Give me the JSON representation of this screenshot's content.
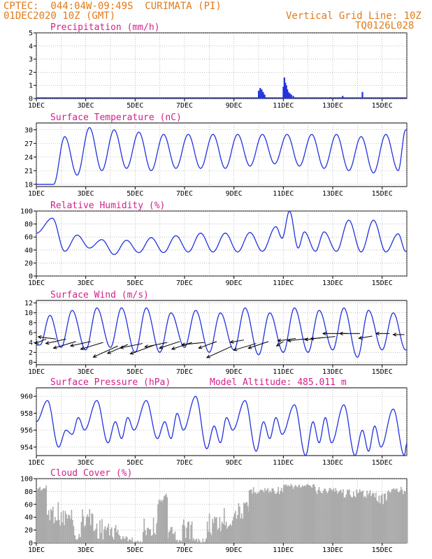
{
  "header": {
    "left_line1": "CPTEC:  044:04W-09:49S  CURIMATA (PI)",
    "left_line2": "01DEC2020 10Z (GMT)",
    "right_line1": "Vertical Grid Line: 10Z",
    "right_line2": "TQ0126L028"
  },
  "colors": {
    "header": "#e07a1a",
    "title": "#d41f8c",
    "line": "#2233dd",
    "cloud": "#aaaaaa"
  },
  "x_axis": {
    "day_range": [
      1,
      16
    ],
    "tick_days": [
      1,
      3,
      5,
      7,
      9,
      11,
      13,
      15
    ],
    "tick_labels": [
      "1DEC",
      "3DEC",
      "5DEC",
      "7DEC",
      "9DEC",
      "11DEC",
      "13DEC",
      "15DEC"
    ]
  },
  "model_altitude_label": "Model Altitude: 485.011 m",
  "chart_data": [
    {
      "type": "bar",
      "title": "Precipitation (mm/h)",
      "ylim": [
        0,
        5
      ],
      "yticks": [
        0,
        1,
        2,
        3,
        4,
        5
      ],
      "x": [
        10.0,
        10.06,
        10.12,
        10.18,
        10.24,
        11.0,
        11.04,
        11.08,
        11.12,
        11.16,
        11.2,
        11.26,
        11.32,
        11.4,
        12.9,
        13.4,
        14.2
      ],
      "values": [
        0.6,
        0.8,
        0.7,
        0.5,
        0.3,
        0.9,
        1.6,
        1.2,
        1.0,
        0.7,
        0.5,
        0.4,
        0.3,
        0.2,
        0.1,
        0.2,
        0.5
      ]
    },
    {
      "type": "line",
      "title": "Surface Temperature (nC)",
      "ylim": [
        17.5,
        31.5
      ],
      "yticks": [
        18,
        21,
        24,
        27,
        30
      ],
      "min_times": [
        1.7,
        2.65,
        3.65,
        4.65,
        5.65,
        6.65,
        7.65,
        8.65,
        9.65,
        10.65,
        11.65,
        12.65,
        13.65,
        14.65,
        15.65
      ],
      "min_values": [
        18.0,
        20.0,
        21.0,
        21.5,
        21.0,
        21.5,
        21.5,
        21.5,
        22.0,
        22.5,
        22.0,
        21.5,
        21.0,
        20.5,
        21.0
      ],
      "max_times": [
        2.15,
        3.15,
        4.15,
        5.15,
        6.15,
        7.15,
        8.15,
        9.15,
        10.15,
        11.15,
        12.15,
        13.15,
        14.15,
        15.15,
        15.95
      ],
      "max_values": [
        28.5,
        30.5,
        30.0,
        29.5,
        29.0,
        29.0,
        29.0,
        29.0,
        29.0,
        29.0,
        29.0,
        29.0,
        28.5,
        29.0,
        30.0
      ]
    },
    {
      "type": "line",
      "title": "Relative Humidity (%)",
      "ylim": [
        0,
        100
      ],
      "yticks": [
        0,
        20,
        40,
        60,
        80,
        100
      ],
      "max_times": [
        1.65,
        2.65,
        3.65,
        4.65,
        5.65,
        6.65,
        7.65,
        8.65,
        9.65,
        10.7,
        11.25,
        11.85,
        12.65,
        13.65,
        14.65,
        15.65
      ],
      "max_values": [
        89,
        63,
        56,
        55,
        59,
        62,
        66,
        66,
        67,
        76,
        100,
        68,
        68,
        86,
        86,
        65
      ],
      "min_times": [
        1.0,
        2.15,
        3.15,
        4.15,
        5.15,
        6.15,
        7.15,
        8.15,
        9.15,
        10.15,
        10.95,
        11.6,
        12.3,
        13.15,
        14.15,
        15.15,
        15.95
      ],
      "min_values": [
        66,
        38,
        43,
        33,
        36,
        36,
        37,
        37,
        37,
        38,
        58,
        43,
        38,
        38,
        37,
        37,
        38
      ]
    },
    {
      "type": "line",
      "title": "Surface Wind (m/s)",
      "ylim": [
        -0.5,
        12.5
      ],
      "yticks": [
        0,
        2,
        4,
        6,
        8,
        10,
        12
      ],
      "max_times": [
        1.55,
        2.45,
        3.45,
        4.45,
        5.45,
        6.45,
        7.45,
        8.45,
        9.45,
        10.45,
        11.45,
        12.45,
        13.45,
        14.45,
        15.45
      ],
      "max_values": [
        9.5,
        10.5,
        11.0,
        11.0,
        11.0,
        10.0,
        10.5,
        10.0,
        11.0,
        10.0,
        11.0,
        10.5,
        11.0,
        10.5,
        10.0
      ],
      "min_times": [
        1.15,
        2.0,
        3.0,
        4.0,
        5.0,
        6.0,
        7.0,
        8.0,
        9.0,
        10.0,
        11.0,
        12.0,
        13.0,
        14.0,
        15.0,
        15.95
      ],
      "min_values": [
        3.5,
        3.0,
        2.5,
        3.0,
        2.0,
        2.0,
        3.0,
        2.0,
        2.5,
        1.5,
        2.0,
        2.0,
        2.5,
        1.0,
        2.5,
        2.5
      ],
      "vectors": [
        {
          "day": 1.4,
          "y": 4.7,
          "u": 5,
          "v": 2
        },
        {
          "day": 1.8,
          "y": 4.7,
          "u": 8,
          "v": -1
        },
        {
          "day": 2.2,
          "y": 4.7,
          "u": 9,
          "v": 2
        },
        {
          "day": 2.6,
          "y": 4.2,
          "u": 10,
          "v": 3
        },
        {
          "day": 3.2,
          "y": 4.2,
          "u": 9,
          "v": 2
        },
        {
          "day": 3.7,
          "y": 4.0,
          "u": 10,
          "v": 3
        },
        {
          "day": 4.3,
          "y": 3.3,
          "u": 11,
          "v": 5
        },
        {
          "day": 4.7,
          "y": 3.6,
          "u": 9,
          "v": 4
        },
        {
          "day": 5.3,
          "y": 3.8,
          "u": 10,
          "v": 2
        },
        {
          "day": 5.8,
          "y": 3.5,
          "u": 11,
          "v": 4
        },
        {
          "day": 6.3,
          "y": 4.0,
          "u": 10,
          "v": 2
        },
        {
          "day": 6.8,
          "y": 4.2,
          "u": 9,
          "v": 3
        },
        {
          "day": 7.3,
          "y": 4.0,
          "u": 9,
          "v": 3
        },
        {
          "day": 7.8,
          "y": 4.0,
          "u": 10,
          "v": 1
        },
        {
          "day": 8.3,
          "y": 4.2,
          "u": 8,
          "v": 3
        },
        {
          "day": 8.9,
          "y": 3.2,
          "u": 11,
          "v": 5
        },
        {
          "day": 9.4,
          "y": 4.5,
          "u": 6,
          "v": 1
        },
        {
          "day": 9.9,
          "y": 3.8,
          "u": 10,
          "v": 3
        },
        {
          "day": 10.4,
          "y": 4.2,
          "u": 9,
          "v": 3
        },
        {
          "day": 11.0,
          "y": 4.2,
          "u": 3,
          "v": 2
        },
        {
          "day": 11.5,
          "y": 4.8,
          "u": 8,
          "v": 1
        },
        {
          "day": 12.0,
          "y": 4.8,
          "u": 9,
          "v": 1
        },
        {
          "day": 12.6,
          "y": 5.0,
          "u": 8,
          "v": 1
        },
        {
          "day": 13.1,
          "y": 5.2,
          "u": 11,
          "v": 1
        },
        {
          "day": 13.6,
          "y": 5.8,
          "u": 11,
          "v": 0
        },
        {
          "day": 14.1,
          "y": 5.8,
          "u": 9,
          "v": 0
        },
        {
          "day": 14.6,
          "y": 5.3,
          "u": 6,
          "v": 1
        },
        {
          "day": 15.3,
          "y": 5.8,
          "u": 6,
          "v": 0
        },
        {
          "day": 15.9,
          "y": 5.6,
          "u": 5,
          "v": 0
        }
      ]
    },
    {
      "type": "line",
      "title": "Surface Pressure (hPa)",
      "ylim": [
        953.0,
        961.0
      ],
      "yticks": [
        954,
        956,
        958,
        960
      ],
      "extreme_times": [
        1.0,
        1.45,
        1.9,
        2.2,
        2.45,
        2.7,
        2.95,
        3.45,
        3.9,
        4.2,
        4.45,
        4.7,
        4.95,
        5.45,
        5.9,
        6.2,
        6.45,
        6.7,
        6.95,
        7.45,
        7.9,
        8.2,
        8.45,
        8.7,
        8.95,
        9.45,
        9.9,
        10.2,
        10.45,
        10.7,
        10.95,
        11.45,
        11.9,
        12.2,
        12.45,
        12.7,
        12.95,
        13.45,
        13.9,
        14.2,
        14.45,
        14.7,
        14.95,
        15.45,
        15.9,
        16.0
      ],
      "extreme_values": [
        957.0,
        959.5,
        954.0,
        956.0,
        955.5,
        957.5,
        956.0,
        959.5,
        954.5,
        957.0,
        955.0,
        957.5,
        956.0,
        959.5,
        955.0,
        957.0,
        955.0,
        958.0,
        956.0,
        960.0,
        953.8,
        956.5,
        954.5,
        957.5,
        956.0,
        959.5,
        953.5,
        957.0,
        955.0,
        957.5,
        955.5,
        959.0,
        953.0,
        957.0,
        954.5,
        957.5,
        954.5,
        959.0,
        953.0,
        956.0,
        953.5,
        956.5,
        954.0,
        958.5,
        953.0,
        954.5
      ]
    },
    {
      "type": "bar",
      "title": "Cloud Cover (%)",
      "ylim": [
        0,
        100
      ],
      "yticks": [
        0,
        20,
        40,
        60,
        80,
        100
      ],
      "segments": [
        {
          "t": [
            1.0,
            1.4
          ],
          "level": 90,
          "jitter": 10
        },
        {
          "t": [
            1.4,
            1.9
          ],
          "level": 65,
          "jitter": 35
        },
        {
          "t": [
            1.9,
            2.5
          ],
          "level": 55,
          "jitter": 30
        },
        {
          "t": [
            2.5,
            2.8
          ],
          "level": 15,
          "jitter": 12
        },
        {
          "t": [
            2.8,
            3.3
          ],
          "level": 55,
          "jitter": 30
        },
        {
          "t": [
            3.3,
            3.9
          ],
          "level": 40,
          "jitter": 35
        },
        {
          "t": [
            3.9,
            4.4
          ],
          "level": 30,
          "jitter": 25
        },
        {
          "t": [
            4.4,
            4.9
          ],
          "level": 12,
          "jitter": 10
        },
        {
          "t": [
            4.9,
            5.3
          ],
          "level": 4,
          "jitter": 4
        },
        {
          "t": [
            5.3,
            5.9
          ],
          "level": 40,
          "jitter": 30
        },
        {
          "t": [
            5.9,
            6.3
          ],
          "level": 78,
          "jitter": 18
        },
        {
          "t": [
            6.3,
            6.6
          ],
          "level": 25,
          "jitter": 20
        },
        {
          "t": [
            6.6,
            6.9
          ],
          "level": 5,
          "jitter": 5
        },
        {
          "t": [
            6.9,
            7.3
          ],
          "level": 40,
          "jitter": 35
        },
        {
          "t": [
            7.3,
            7.9
          ],
          "level": 8,
          "jitter": 8
        },
        {
          "t": [
            7.9,
            8.5
          ],
          "level": 50,
          "jitter": 40
        },
        {
          "t": [
            8.5,
            9.0
          ],
          "level": 55,
          "jitter": 35
        },
        {
          "t": [
            9.0,
            9.6
          ],
          "level": 65,
          "jitter": 30
        },
        {
          "t": [
            9.6,
            11.0
          ],
          "level": 88,
          "jitter": 12
        },
        {
          "t": [
            11.0,
            12.3
          ],
          "level": 92,
          "jitter": 8
        },
        {
          "t": [
            12.3,
            13.4
          ],
          "level": 88,
          "jitter": 12
        },
        {
          "t": [
            13.4,
            14.6
          ],
          "level": 85,
          "jitter": 15
        },
        {
          "t": [
            14.6,
            15.2
          ],
          "level": 80,
          "jitter": 20
        },
        {
          "t": [
            15.2,
            16.0
          ],
          "level": 88,
          "jitter": 12
        }
      ]
    }
  ]
}
